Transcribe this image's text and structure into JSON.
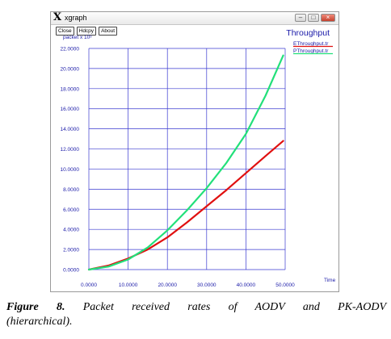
{
  "window": {
    "app_icon": "X",
    "title": "xgraph",
    "buttons": [
      "Close",
      "Hdcpy",
      "About"
    ],
    "controls": {
      "minimize": "–",
      "maximize": "□",
      "close": "×"
    }
  },
  "chart_data": {
    "type": "line",
    "title": "Throughput",
    "ylabel": "packet x 10³",
    "xlabel": "Time",
    "xlim": [
      0,
      50
    ],
    "ylim": [
      0,
      22
    ],
    "x_ticks": [
      "0.0000",
      "10.0000",
      "20.0000",
      "30.0000",
      "40.0000",
      "50.0000"
    ],
    "y_ticks": [
      "0.0000",
      "2.0000",
      "4.0000",
      "6.0000",
      "8.0000",
      "10.0000",
      "12.0000",
      "14.0000",
      "16.0000",
      "18.0000",
      "20.0000",
      "22.0000"
    ],
    "grid": true,
    "legend_position": "top-right",
    "series": [
      {
        "name": "EThroughput.tr",
        "color": "#e01010",
        "x": [
          0,
          5,
          10,
          15,
          20,
          25,
          30,
          35,
          40,
          45,
          49.5
        ],
        "values": [
          0,
          0.4,
          1.1,
          2.0,
          3.2,
          4.7,
          6.3,
          7.9,
          9.6,
          11.3,
          12.8
        ]
      },
      {
        "name": "PThroughput.tr",
        "color": "#22e07a",
        "x": [
          0,
          5,
          10,
          15,
          20,
          25,
          30,
          35,
          40,
          45,
          49.5
        ],
        "values": [
          0,
          0.3,
          1.0,
          2.2,
          3.9,
          5.9,
          8.1,
          10.6,
          13.5,
          17.3,
          21.3
        ]
      }
    ]
  },
  "caption": {
    "label": "Figure 8.",
    "text_line1": "Packet received rates of AODV and PK-AODV",
    "text_line2": "(hierarchical)."
  }
}
